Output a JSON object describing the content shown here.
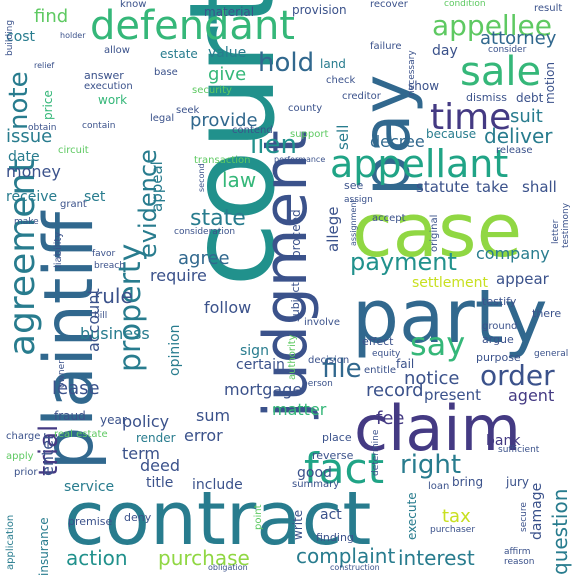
{
  "word_cloud": {
    "colors": {
      "deep_purple": "#440154",
      "indigo": "#443a83",
      "slate_blue": "#3b528b",
      "steel_blue": "#31688e",
      "teal_blue": "#287c8e",
      "teal": "#21918c",
      "sea_green": "#20a486",
      "green": "#35b779",
      "light_green": "#5ec962",
      "lime": "#90d743",
      "yellow_green": "#c8e020",
      "yellow": "#fde725"
    },
    "words": [
      "court",
      "contract",
      "plaintiff",
      "party",
      "judgment",
      "claim",
      "case",
      "pay",
      "defendant",
      "agreement",
      "appellant",
      "time",
      "sale",
      "property",
      "fact",
      "appellee",
      "evidence",
      "trial",
      "note",
      "payment",
      "say",
      "order",
      "right",
      "file",
      "lien",
      "find",
      "hold",
      "state",
      "action",
      "interest",
      "complaint",
      "purchase",
      "attorney",
      "question",
      "law",
      "record",
      "issue",
      "deliver",
      "suit",
      "company",
      "statute",
      "take",
      "shall",
      "give",
      "rule",
      "provide",
      "agree",
      "decree",
      "allege",
      "lease",
      "money",
      "notice",
      "mortgage",
      "sell",
      "account",
      "business",
      "tax",
      "matter",
      "bank",
      "fee",
      "agent",
      "enter",
      "policy",
      "deed",
      "term",
      "sum",
      "require",
      "error",
      "follow",
      "opinion",
      "certain",
      "sign",
      "value",
      "cost",
      "date",
      "receive",
      "set",
      "appeal",
      "present",
      "appear",
      "settlement",
      "estate",
      "land",
      "day",
      "work",
      "price",
      "good",
      "title",
      "include",
      "service",
      "real estate",
      "act",
      "fraud",
      "render",
      "insurance",
      "damage",
      "jury",
      "execute",
      "write",
      "point",
      "deny",
      "premise",
      "application",
      "finding",
      "summary",
      "loan",
      "show",
      "motion",
      "debt",
      "because",
      "dismiss",
      "creditor",
      "security",
      "execution",
      "check",
      "answer",
      "allow",
      "base",
      "legal",
      "seek",
      "support",
      "county",
      "contend",
      "material",
      "provision",
      "result",
      "know",
      "recover",
      "failure",
      "condition",
      "consider",
      "necessary",
      "release",
      "transaction",
      "consideration",
      "second",
      "proceed",
      "subject",
      "grant",
      "liability",
      "make",
      "favor",
      "breach",
      "bill",
      "owner",
      "charge",
      "apply",
      "prior",
      "year",
      "place",
      "reverse",
      "determine",
      "authority",
      "person",
      "involve",
      "decision",
      "effect",
      "equity",
      "entitle",
      "fail",
      "argue",
      "purpose",
      "ground",
      "testify",
      "there",
      "general",
      "letter",
      "testimony",
      "original",
      "accept",
      "assignment",
      "see",
      "assign",
      "circuit",
      "contain",
      "obtain",
      "relief",
      "performance",
      "holder",
      "purchaser",
      "obligation",
      "construction",
      "affirm",
      "reason",
      "secure",
      "sufficient",
      "building",
      "require_small",
      "bring"
    ]
  }
}
